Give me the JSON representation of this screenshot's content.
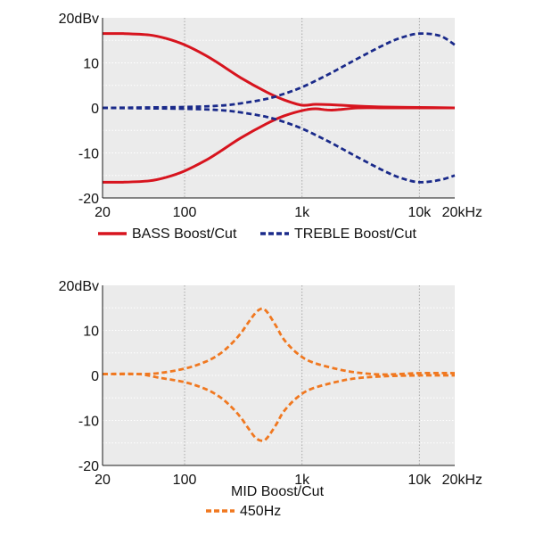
{
  "chart_data": [
    {
      "type": "line",
      "x_scale": "log",
      "xlim": [
        20,
        20000
      ],
      "ylim": [
        -20,
        20
      ],
      "xticks": [
        {
          "value": 20,
          "label": "20"
        },
        {
          "value": 100,
          "label": "100"
        },
        {
          "value": 1000,
          "label": "1k"
        },
        {
          "value": 10000,
          "label": "10k"
        },
        {
          "value": 20000,
          "label": "20kHz"
        }
      ],
      "yticks": [
        {
          "value": 20,
          "label": "20dBv"
        },
        {
          "value": 10,
          "label": "10"
        },
        {
          "value": 0,
          "label": "0"
        },
        {
          "value": -10,
          "label": "-10"
        },
        {
          "value": -20,
          "label": "-20"
        }
      ],
      "grid": true,
      "background": "#ebebeb",
      "legend_position": "bottom",
      "series": [
        {
          "name": "BASS Boost/Cut",
          "color": "#d7141e",
          "dash": "solid",
          "legend": true,
          "x": [
            20,
            30,
            50,
            70,
            100,
            150,
            200,
            300,
            500,
            700,
            1000,
            1300,
            1800,
            3000,
            5000,
            10000,
            20000
          ],
          "y": [
            16.5,
            16.5,
            16.2,
            15.4,
            14.0,
            11.7,
            9.7,
            6.7,
            3.5,
            1.8,
            0.6,
            0.8,
            0.7,
            0.4,
            0.2,
            0.1,
            0.0
          ]
        },
        {
          "name": "BASS Boost/Cut",
          "color": "#d7141e",
          "dash": "solid",
          "legend": false,
          "x": [
            20,
            30,
            50,
            70,
            100,
            150,
            200,
            300,
            500,
            700,
            1000,
            1300,
            1800,
            3000,
            5000,
            10000,
            20000
          ],
          "y": [
            -16.5,
            -16.5,
            -16.2,
            -15.4,
            -14.0,
            -11.7,
            -9.7,
            -6.7,
            -3.5,
            -1.8,
            -0.6,
            -0.2,
            -0.5,
            0.0,
            0.0,
            0.0,
            0.0
          ]
        },
        {
          "name": "TREBLE Boost/Cut",
          "color": "#1a2a8a",
          "dash": "dashed",
          "legend": true,
          "x": [
            20,
            100,
            200,
            300,
            500,
            700,
            1000,
            1500,
            2000,
            3000,
            5000,
            7000,
            10000,
            15000,
            20000
          ],
          "y": [
            0.0,
            0.2,
            0.5,
            1.0,
            2.0,
            3.1,
            4.6,
            6.8,
            8.5,
            11.0,
            14.0,
            15.6,
            16.5,
            16.0,
            14.0
          ]
        },
        {
          "name": "TREBLE Boost/Cut",
          "color": "#1a2a8a",
          "dash": "dashed",
          "legend": false,
          "x": [
            20,
            100,
            200,
            300,
            500,
            700,
            1000,
            1500,
            2000,
            3000,
            5000,
            7000,
            10000,
            15000,
            20000
          ],
          "y": [
            0.0,
            -0.2,
            -0.5,
            -1.0,
            -2.0,
            -3.1,
            -4.6,
            -6.8,
            -8.5,
            -11.0,
            -14.0,
            -15.6,
            -16.5,
            -16.0,
            -15.0
          ]
        }
      ]
    },
    {
      "type": "line",
      "x_scale": "log",
      "xlim": [
        20,
        20000
      ],
      "ylim": [
        -20,
        20
      ],
      "xticks": [
        {
          "value": 20,
          "label": "20"
        },
        {
          "value": 100,
          "label": "100"
        },
        {
          "value": 1000,
          "label": "1k"
        },
        {
          "value": 10000,
          "label": "10k"
        },
        {
          "value": 20000,
          "label": "20kHz"
        }
      ],
      "yticks": [
        {
          "value": 20,
          "label": "20dBv"
        },
        {
          "value": 10,
          "label": "10"
        },
        {
          "value": 0,
          "label": "0"
        },
        {
          "value": -10,
          "label": "-10"
        },
        {
          "value": -20,
          "label": "-20"
        }
      ],
      "grid": true,
      "background": "#ebebeb",
      "legend_title": "MID Boost/Cut",
      "legend_position": "bottom",
      "series": [
        {
          "name": "450Hz",
          "color": "#f07820",
          "dash": "dashed",
          "legend": true,
          "x": [
            20,
            40,
            60,
            100,
            150,
            200,
            250,
            300,
            350,
            400,
            450,
            500,
            600,
            700,
            900,
            1200,
            2000,
            3000,
            5000,
            10000,
            20000
          ],
          "y": [
            0.3,
            0.3,
            0.5,
            1.5,
            3.0,
            4.8,
            7.0,
            9.3,
            11.8,
            13.8,
            14.8,
            14.2,
            11.0,
            8.0,
            5.0,
            3.0,
            1.4,
            0.6,
            0.2,
            0.5,
            0.5
          ]
        },
        {
          "name": "450Hz",
          "color": "#f07820",
          "dash": "dashed",
          "legend": false,
          "x": [
            20,
            40,
            60,
            100,
            150,
            200,
            250,
            300,
            350,
            400,
            450,
            500,
            600,
            700,
            900,
            1200,
            2000,
            3000,
            5000,
            10000,
            20000
          ],
          "y": [
            0.3,
            0.3,
            -0.5,
            -1.5,
            -3.0,
            -4.8,
            -7.0,
            -9.3,
            -11.8,
            -13.8,
            -14.5,
            -14.0,
            -11.0,
            -8.0,
            -5.0,
            -3.0,
            -1.4,
            -0.6,
            -0.2,
            0.0,
            0.0
          ]
        }
      ]
    }
  ]
}
